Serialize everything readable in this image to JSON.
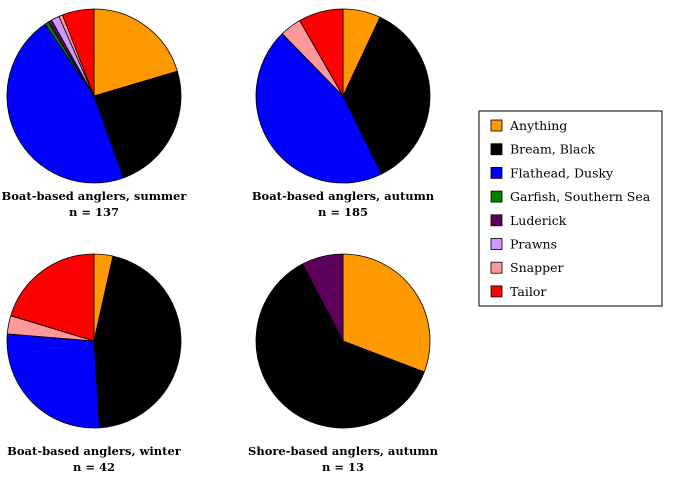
{
  "chart_data": {
    "type": "pie",
    "legend": {
      "placement": "right",
      "entries": [
        {
          "name": "Anything",
          "color": "#ff9900"
        },
        {
          "name": "Bream, Black",
          "color": "#000000"
        },
        {
          "name": "Flathead, Dusky",
          "color": "#0000ff"
        },
        {
          "name": "Garfish, Southern Sea",
          "color": "#008000"
        },
        {
          "name": "Luderick",
          "color": "#5c005c"
        },
        {
          "name": "Prawns",
          "color": "#cc99ff"
        },
        {
          "name": "Snapper",
          "color": "#ff9999"
        },
        {
          "name": "Tailor",
          "color": "#ff0000"
        }
      ]
    },
    "pies": [
      {
        "title": "Boat-based anglers, summer",
        "n_label": "n = 137",
        "slices": [
          {
            "name": "Anything",
            "value": 20.4
          },
          {
            "name": "Bream, Black",
            "value": 24.1
          },
          {
            "name": "Flathead, Dusky",
            "value": 46.0
          },
          {
            "name": "Garfish, Southern Sea",
            "value": 0.7
          },
          {
            "name": "Luderick",
            "value": 0.7
          },
          {
            "name": "Prawns",
            "value": 1.5
          },
          {
            "name": "Snapper",
            "value": 0.7
          },
          {
            "name": "Tailor",
            "value": 5.9
          }
        ]
      },
      {
        "title": "Boat-based anglers, autumn",
        "n_label": "n = 185",
        "slices": [
          {
            "name": "Anything",
            "value": 7.0
          },
          {
            "name": "Bream, Black",
            "value": 35.7
          },
          {
            "name": "Flathead, Dusky",
            "value": 45.0
          },
          {
            "name": "Snapper",
            "value": 4.0
          },
          {
            "name": "Tailor",
            "value": 8.3
          }
        ]
      },
      {
        "title": "Boat-based anglers, winter",
        "n_label": "n = 42",
        "slices": [
          {
            "name": "Anything",
            "value": 3.5
          },
          {
            "name": "Bream, Black",
            "value": 45.5
          },
          {
            "name": "Flathead, Dusky",
            "value": 27.3
          },
          {
            "name": "Snapper",
            "value": 3.4
          },
          {
            "name": "Tailor",
            "value": 20.3
          }
        ]
      },
      {
        "title": "Shore-based anglers, autumn",
        "n_label": "n = 13",
        "slices": [
          {
            "name": "Anything",
            "value": 30.8
          },
          {
            "name": "Bream, Black",
            "value": 61.5
          },
          {
            "name": "Luderick",
            "value": 7.7
          }
        ]
      }
    ]
  }
}
